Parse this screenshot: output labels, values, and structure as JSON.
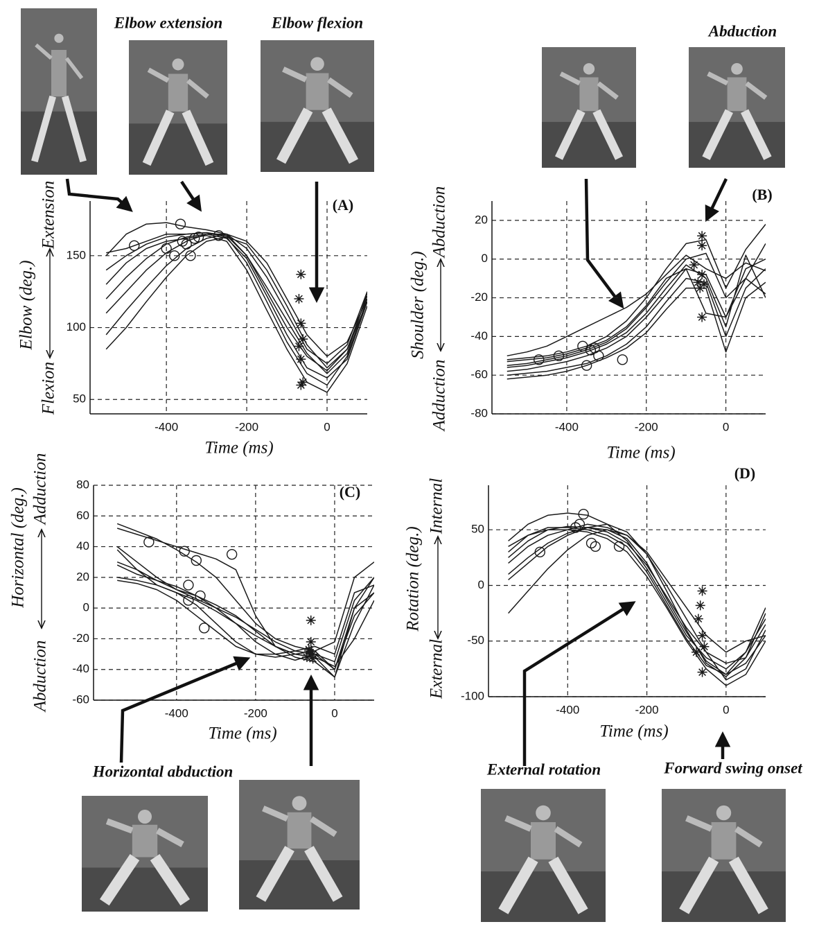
{
  "captions": [
    "Elbow extension",
    "Elbow flexion",
    "Abduction",
    "Horizontal abduction",
    "External rotation",
    "Forward swing onset"
  ],
  "chart_data": [
    {
      "type": "line",
      "title": "(A)",
      "xlabel": "Time (ms)",
      "ylabel": "Elbow (deg.)",
      "ylabel_low": "Flexion",
      "ylabel_high": "Extension",
      "xlim": [
        -590,
        100
      ],
      "xticks": [
        -400,
        -200,
        0
      ],
      "ylim": [
        40,
        188
      ],
      "yticks": [
        50,
        100,
        150
      ],
      "grid": true,
      "color": "#1a1a1a",
      "x": [
        -550,
        -500,
        -450,
        -400,
        -350,
        -300,
        -250,
        -200,
        -150,
        -100,
        -50,
        0,
        50,
        100
      ],
      "series": [
        {
          "values": [
            150,
            165,
            172,
            173,
            170,
            168,
            165,
            150,
            125,
            100,
            80,
            70,
            85,
            122
          ]
        },
        {
          "values": [
            140,
            150,
            158,
            163,
            165,
            166,
            163,
            145,
            118,
            90,
            68,
            60,
            80,
            120
          ]
        },
        {
          "values": [
            120,
            135,
            148,
            158,
            163,
            165,
            162,
            148,
            122,
            95,
            72,
            65,
            78,
            118
          ]
        },
        {
          "values": [
            110,
            125,
            140,
            152,
            160,
            165,
            165,
            155,
            135,
            110,
            85,
            75,
            88,
            125
          ]
        },
        {
          "values": [
            95,
            112,
            128,
            143,
            155,
            162,
            165,
            160,
            145,
            120,
            95,
            80,
            90,
            120
          ]
        },
        {
          "values": [
            85,
            100,
            118,
            135,
            150,
            160,
            163,
            158,
            140,
            115,
            88,
            72,
            85,
            118
          ]
        },
        {
          "values": [
            152,
            155,
            160,
            165,
            165,
            166,
            164,
            150,
            128,
            105,
            82,
            68,
            82,
            124
          ]
        },
        {
          "values": [
            130,
            145,
            155,
            160,
            162,
            164,
            160,
            140,
            112,
            85,
            62,
            55,
            75,
            115
          ]
        }
      ],
      "circles": {
        "x": [
          -480,
          -400,
          -380,
          -365,
          -360,
          -350,
          -340,
          -330,
          -320,
          -270
        ],
        "y": [
          157,
          155,
          150,
          172,
          160,
          158,
          150,
          162,
          163,
          164
        ]
      },
      "stars": {
        "x": [
          -65,
          -70,
          -65,
          -60,
          -70,
          -65,
          -60,
          -65
        ],
        "y": [
          137,
          120,
          103,
          92,
          87,
          78,
          62,
          60
        ]
      }
    },
    {
      "type": "line",
      "title": "(B)",
      "xlabel": "Time (ms)",
      "ylabel": "Shoulder (deg.)",
      "ylabel_low": "Adduction",
      "ylabel_high": "Abduction",
      "xlim": [
        -588,
        100
      ],
      "xticks": [
        -400,
        -200,
        0
      ],
      "ylim": [
        -80,
        30
      ],
      "yticks": [
        -80,
        -60,
        -40,
        -20,
        0,
        20
      ],
      "grid": true,
      "color": "#1a1a1a",
      "x": [
        -550,
        -500,
        -450,
        -400,
        -350,
        -300,
        -250,
        -200,
        -150,
        -100,
        -50,
        0,
        50,
        100
      ],
      "series": [
        {
          "values": [
            -52,
            -51,
            -50,
            -48,
            -45,
            -40,
            -32,
            -20,
            -5,
            8,
            10,
            -15,
            5,
            18
          ]
        },
        {
          "values": [
            -55,
            -54,
            -52,
            -50,
            -47,
            -43,
            -36,
            -25,
            -12,
            0,
            3,
            -20,
            -10,
            8
          ]
        },
        {
          "values": [
            -58,
            -57,
            -55,
            -53,
            -50,
            -46,
            -40,
            -30,
            -18,
            -5,
            -8,
            -30,
            -5,
            0
          ]
        },
        {
          "values": [
            -60,
            -59,
            -58,
            -56,
            -54,
            -50,
            -44,
            -35,
            -22,
            -10,
            -12,
            -40,
            -15,
            -5
          ]
        },
        {
          "values": [
            -62,
            -61,
            -60,
            -58,
            -55,
            -51,
            -46,
            -38,
            -26,
            -15,
            -15,
            -48,
            -20,
            -12
          ]
        },
        {
          "values": [
            -53,
            -52,
            -51,
            -49,
            -46,
            -42,
            -35,
            -24,
            -10,
            -5,
            -28,
            -30,
            -10,
            -18
          ]
        },
        {
          "values": [
            -50,
            -48,
            -45,
            -40,
            -35,
            -30,
            -25,
            -18,
            -8,
            2,
            -5,
            -10,
            -2,
            -6
          ]
        },
        {
          "values": [
            -56,
            -55,
            -53,
            -51,
            -48,
            -44,
            -38,
            -28,
            -15,
            -3,
            -10,
            -35,
            2,
            -20
          ]
        }
      ],
      "circles": {
        "x": [
          -470,
          -420,
          -360,
          -350,
          -340,
          -330,
          -320,
          -260
        ],
        "y": [
          -52,
          -50,
          -45,
          -55,
          -47,
          -46,
          -50,
          -52
        ]
      },
      "stars": {
        "x": [
          -60,
          -60,
          -80,
          -60,
          -70,
          -55,
          -65,
          -60
        ],
        "y": [
          12,
          7,
          -3,
          -8,
          -12,
          -13,
          -15,
          -30
        ]
      }
    },
    {
      "type": "line",
      "title": "(C)",
      "xlabel": "Time (ms)",
      "ylabel": "Horizontal (deg.)",
      "ylabel_low": "Abduction",
      "ylabel_high": "Adduction",
      "xlim": [
        -610,
        100
      ],
      "xticks": [
        -400,
        -200,
        0
      ],
      "ylim": [
        -60,
        80
      ],
      "yticks": [
        -60,
        -40,
        -20,
        0,
        20,
        40,
        60,
        80
      ],
      "grid": true,
      "color": "#1a1a1a",
      "x": [
        -550,
        -500,
        -450,
        -400,
        -350,
        -300,
        -250,
        -200,
        -150,
        -100,
        -50,
        0,
        50,
        100
      ],
      "series": [
        {
          "values": [
            55,
            50,
            45,
            38,
            30,
            20,
            5,
            -10,
            -20,
            -25,
            -28,
            -22,
            20,
            30
          ]
        },
        {
          "values": [
            40,
            30,
            20,
            12,
            6,
            0,
            -6,
            -14,
            -22,
            -28,
            -30,
            -40,
            0,
            20
          ]
        },
        {
          "values": [
            38,
            25,
            15,
            10,
            5,
            -2,
            -10,
            -18,
            -25,
            -30,
            -32,
            -45,
            -10,
            15
          ]
        },
        {
          "values": [
            30,
            25,
            18,
            12,
            8,
            2,
            -5,
            -15,
            -25,
            -32,
            -35,
            -45,
            0,
            10
          ]
        },
        {
          "values": [
            28,
            22,
            18,
            14,
            8,
            0,
            -10,
            -22,
            -30,
            -34,
            -30,
            -35,
            5,
            20
          ]
        },
        {
          "values": [
            20,
            18,
            15,
            10,
            2,
            -10,
            -22,
            -30,
            -32,
            -30,
            -28,
            -40,
            -5,
            10
          ]
        },
        {
          "values": [
            18,
            16,
            12,
            5,
            -5,
            -15,
            -25,
            -30,
            -30,
            -28,
            -25,
            -30,
            10,
            15
          ]
        },
        {
          "values": [
            52,
            48,
            44,
            40,
            36,
            32,
            25,
            -5,
            -25,
            -30,
            -32,
            -38,
            -20,
            5
          ]
        }
      ],
      "circles": {
        "x": [
          -470,
          -380,
          -370,
          -370,
          -350,
          -340,
          -330,
          -260
        ],
        "y": [
          43,
          37,
          15,
          5,
          31,
          8,
          -13,
          35
        ]
      },
      "stars": {
        "x": [
          -60,
          -60,
          -65,
          -55,
          -70,
          -60,
          -65,
          -55
        ],
        "y": [
          -8,
          -22,
          -28,
          -30,
          -32,
          -30,
          -27,
          -33
        ]
      }
    },
    {
      "type": "line",
      "title": "(D)",
      "xlabel": "Time (ms)",
      "ylabel": "Rotation (deg.)",
      "ylabel_low": "External",
      "ylabel_high": "Internal",
      "xlim": [
        -600,
        100
      ],
      "xticks": [
        -400,
        -200,
        0
      ],
      "ylim": [
        -100,
        90
      ],
      "yticks": [
        -100,
        -50,
        0,
        50
      ],
      "grid": true,
      "color": "#1a1a1a",
      "x": [
        -550,
        -500,
        -450,
        -400,
        -350,
        -300,
        -250,
        -200,
        -150,
        -100,
        -50,
        0,
        50,
        100
      ],
      "series": [
        {
          "values": [
            40,
            55,
            63,
            65,
            63,
            55,
            40,
            15,
            -15,
            -45,
            -65,
            -75,
            -60,
            -20
          ]
        },
        {
          "values": [
            25,
            40,
            50,
            53,
            52,
            48,
            38,
            18,
            -10,
            -38,
            -60,
            -70,
            -65,
            -25
          ]
        },
        {
          "values": [
            10,
            25,
            38,
            47,
            52,
            50,
            42,
            20,
            -12,
            -42,
            -68,
            -80,
            -60,
            -30
          ]
        },
        {
          "values": [
            -25,
            -5,
            15,
            32,
            45,
            50,
            45,
            28,
            0,
            -30,
            -60,
            -85,
            -75,
            -40
          ]
        },
        {
          "values": [
            30,
            45,
            52,
            52,
            50,
            45,
            35,
            12,
            -18,
            -48,
            -72,
            -80,
            -70,
            -45
          ]
        },
        {
          "values": [
            5,
            20,
            35,
            45,
            52,
            55,
            48,
            28,
            -5,
            -40,
            -70,
            -82,
            -65,
            -35
          ]
        },
        {
          "values": [
            35,
            45,
            50,
            50,
            48,
            42,
            30,
            8,
            -20,
            -50,
            -75,
            -90,
            -80,
            -50
          ]
        },
        {
          "values": [
            20,
            35,
            45,
            50,
            55,
            52,
            45,
            30,
            5,
            -20,
            -45,
            -60,
            -50,
            -45
          ]
        }
      ],
      "circles": {
        "x": [
          -470,
          -380,
          -370,
          -360,
          -340,
          -330,
          -270
        ],
        "y": [
          30,
          52,
          55,
          64,
          38,
          35,
          35
        ]
      },
      "stars": {
        "x": [
          -60,
          -65,
          -70,
          -60,
          -55,
          -75,
          -60
        ],
        "y": [
          -5,
          -18,
          -30,
          -45,
          -55,
          -60,
          -78
        ]
      }
    }
  ]
}
